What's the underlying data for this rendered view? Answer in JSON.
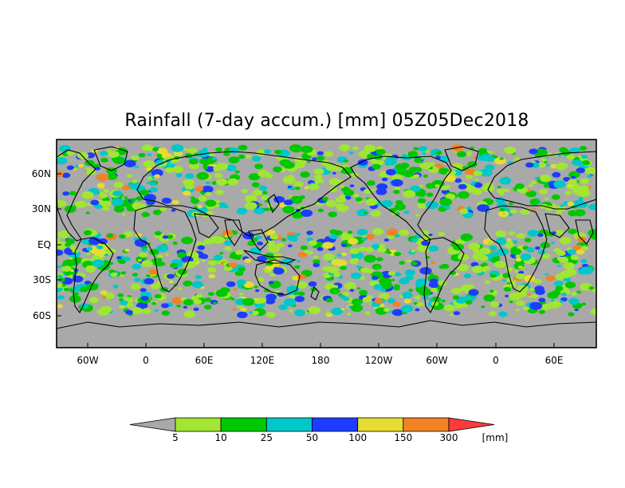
{
  "title": "Rainfall (7-day accum.) [mm] 05Z05Dec2018",
  "map": {
    "ocean_color": "#a9a9a9",
    "lat_labels": [
      "60N",
      "30N",
      "EQ",
      "30S",
      "60S"
    ],
    "lon_labels": [
      "60W",
      "0",
      "60E",
      "120E",
      "180",
      "120W",
      "60W",
      "0",
      "60E"
    ]
  },
  "legend": {
    "unit": "[mm]",
    "thresholds": [
      "5",
      "10",
      "25",
      "50",
      "100",
      "150",
      "300"
    ],
    "colors": [
      "#a9a9a9",
      "#a0e632",
      "#00c800",
      "#00c8c8",
      "#1e3cff",
      "#e6dc32",
      "#f08228",
      "#fa3c3c"
    ]
  }
}
